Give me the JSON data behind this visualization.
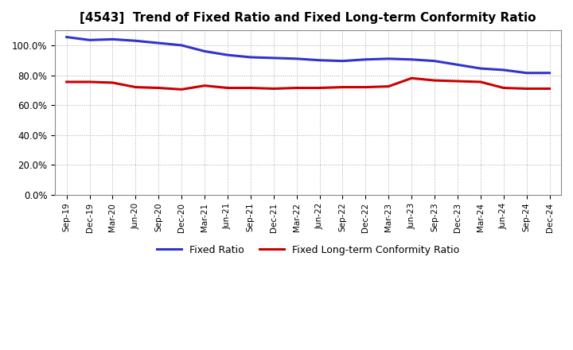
{
  "title": "[4543]  Trend of Fixed Ratio and Fixed Long-term Conformity Ratio",
  "x_labels": [
    "Sep-19",
    "Dec-19",
    "Mar-20",
    "Jun-20",
    "Sep-20",
    "Dec-20",
    "Mar-21",
    "Jun-21",
    "Sep-21",
    "Dec-21",
    "Mar-22",
    "Jun-22",
    "Sep-22",
    "Dec-22",
    "Mar-23",
    "Jun-23",
    "Sep-23",
    "Dec-23",
    "Mar-24",
    "Jun-24",
    "Sep-24",
    "Dec-24"
  ],
  "fixed_ratio": [
    105.5,
    103.5,
    104.0,
    103.0,
    101.5,
    100.0,
    96.0,
    93.5,
    92.0,
    91.5,
    91.0,
    90.0,
    89.5,
    90.5,
    91.0,
    90.5,
    89.5,
    87.0,
    84.5,
    83.5,
    81.5,
    81.5
  ],
  "fixed_lt_ratio": [
    75.5,
    75.5,
    75.0,
    72.0,
    71.5,
    70.5,
    73.0,
    71.5,
    71.5,
    71.0,
    71.5,
    71.5,
    72.0,
    72.0,
    72.5,
    78.0,
    76.5,
    76.0,
    75.5,
    71.5,
    71.0,
    71.0
  ],
  "fixed_ratio_color": "#3333cc",
  "fixed_lt_ratio_color": "#cc0000",
  "ylim": [
    0,
    110
  ],
  "yticks": [
    0,
    20,
    40,
    60,
    80,
    100
  ],
  "bg_color": "#ffffff",
  "plot_bg_color": "#ffffff",
  "grid_color": "#aaaaaa",
  "title_fontsize": 11,
  "legend_labels": [
    "Fixed Ratio",
    "Fixed Long-term Conformity Ratio"
  ],
  "line_width": 2.2
}
